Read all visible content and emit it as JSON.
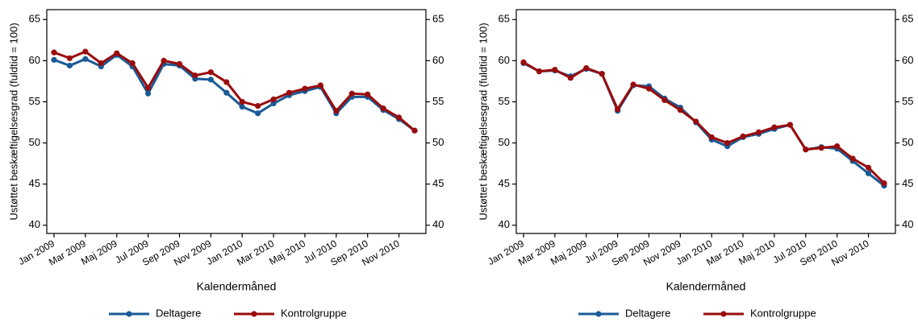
{
  "chart_data": [
    {
      "type": "line",
      "y_label": "Ustøttet beskæftigelsesgrad (fuldtid = 100)",
      "x_label": "Kalendermåned",
      "categories": [
        "Jan 2009",
        null,
        "Mar 2009",
        null,
        "Maj 2009",
        null,
        "Jul 2009",
        null,
        "Sep 2009",
        null,
        "Nov 2009",
        null,
        "Jan 2010",
        null,
        "Mar 2010",
        null,
        "Maj 2010",
        null,
        "Jul 2010",
        null,
        "Sep 2010",
        null,
        "Nov 2010",
        null
      ],
      "ylim": [
        39,
        66.2
      ],
      "yticks": [
        40,
        45,
        50,
        55,
        60,
        65
      ],
      "y2lim": [
        39,
        66.2
      ],
      "y2ticks": [
        40,
        45,
        50,
        55,
        60,
        65
      ],
      "series": [
        {
          "name": "Deltagere",
          "color": "#1a5a96",
          "values": [
            60.1,
            59.4,
            60.2,
            59.3,
            60.7,
            59.3,
            56.0,
            59.6,
            59.4,
            57.8,
            57.7,
            56.1,
            54.4,
            53.6,
            54.8,
            55.8,
            56.3,
            56.8,
            53.6,
            55.6,
            55.6,
            54.0,
            52.9,
            51.5
          ]
        },
        {
          "name": "Kontrolgruppe",
          "color": "#990c0c",
          "values": [
            61.0,
            60.3,
            61.1,
            59.7,
            60.9,
            59.7,
            56.7,
            60.0,
            59.6,
            58.2,
            58.6,
            57.4,
            55.0,
            54.5,
            55.3,
            56.1,
            56.6,
            57.0,
            53.9,
            56.0,
            55.9,
            54.2,
            53.1,
            51.5
          ]
        }
      ]
    },
    {
      "type": "line",
      "y_label": "Ustøttet beskæftigelsesgrad (fuldtid = 100)",
      "x_label": "Kalendermåned",
      "categories": [
        "Jan 2009",
        null,
        "Mar 2009",
        null,
        "Maj 2009",
        null,
        "Jul 2009",
        null,
        "Sep 2009",
        null,
        "Nov 2009",
        null,
        "Jan 2010",
        null,
        "Mar 2010",
        null,
        "Maj 2010",
        null,
        "Jul 2010",
        null,
        "Sep 2010",
        null,
        "Nov 2010",
        null
      ],
      "ylim": [
        39,
        66.2
      ],
      "yticks": [
        40,
        45,
        50,
        55,
        60,
        65
      ],
      "y2lim": [
        39,
        66.2
      ],
      "y2ticks": [
        40,
        45,
        50,
        55,
        60,
        65
      ],
      "series": [
        {
          "name": "Deltagere",
          "color": "#1a5a96",
          "values": [
            59.7,
            58.7,
            58.8,
            58.1,
            59.0,
            58.4,
            53.9,
            57.0,
            56.9,
            55.4,
            54.3,
            52.5,
            50.4,
            49.6,
            50.7,
            51.1,
            51.7,
            52.2,
            49.2,
            49.5,
            49.3,
            47.8,
            46.3,
            44.8
          ]
        },
        {
          "name": "Kontrolgruppe",
          "color": "#990c0c",
          "values": [
            59.8,
            58.7,
            58.9,
            57.9,
            59.1,
            58.4,
            54.1,
            57.1,
            56.6,
            55.2,
            54.0,
            52.6,
            50.7,
            50.0,
            50.8,
            51.3,
            51.9,
            52.2,
            49.2,
            49.4,
            49.6,
            48.1,
            47.0,
            45.1
          ]
        }
      ]
    }
  ]
}
